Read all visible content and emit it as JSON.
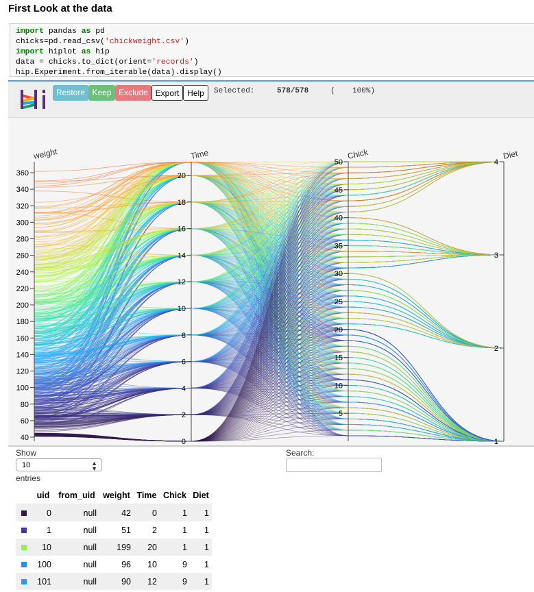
{
  "page": {
    "heading": "First Look at the data"
  },
  "code": {
    "lines": [
      [
        {
          "t": "import",
          "c": "kw"
        },
        {
          "t": " pandas "
        },
        {
          "t": "as",
          "c": "kw"
        },
        {
          "t": " pd"
        }
      ],
      [
        {
          "t": "chicks=pd.read_csv("
        },
        {
          "t": "'chickweight.csv'",
          "c": "str"
        },
        {
          "t": ")"
        }
      ],
      [
        {
          "t": "import",
          "c": "kw"
        },
        {
          "t": " hiplot "
        },
        {
          "t": "as",
          "c": "kw"
        },
        {
          "t": " hip"
        }
      ],
      [
        {
          "t": "data = chicks.to_dict(orient="
        },
        {
          "t": "'records'",
          "c": "str"
        },
        {
          "t": ")"
        }
      ],
      [
        {
          "t": "hip.Experiment.from_iterable(data).display()"
        }
      ]
    ]
  },
  "toolbar": {
    "restore_label": "Restore",
    "keep_label": "Keep",
    "exclude_label": "Exclude",
    "export_label": "Export",
    "help_label": "Help",
    "selected_label": "Selected:",
    "selected_count": "578/578",
    "selected_pct_open": "(",
    "selected_pct": "100%)",
    "colors": {
      "restore": "#6fbfd0",
      "keep": "#6cc07b",
      "exclude": "#e57a7f"
    }
  },
  "chart_data": {
    "type": "parallel_coordinates",
    "axes": [
      {
        "name": "weight",
        "ticks": [
          "40",
          "60",
          "80",
          "100",
          "120",
          "140",
          "160",
          "180",
          "200",
          "220",
          "240",
          "260",
          "280",
          "300",
          "320",
          "340",
          "360"
        ],
        "range": [
          35,
          373
        ]
      },
      {
        "name": "Time",
        "ticks": [
          "0",
          "2",
          "4",
          "6",
          "8",
          "10",
          "12",
          "14",
          "16",
          "18",
          "20"
        ],
        "range": [
          0,
          21
        ]
      },
      {
        "name": "Chick",
        "ticks": [
          "5",
          "10",
          "15",
          "20",
          "25",
          "30",
          "35",
          "40",
          "45",
          "50"
        ],
        "range": [
          1,
          50
        ]
      },
      {
        "name": "Diet",
        "ticks": [
          "1",
          "2",
          "3",
          "4"
        ],
        "range": [
          1,
          4
        ]
      }
    ],
    "time_points": [
      0,
      2,
      4,
      6,
      8,
      10,
      12,
      14,
      16,
      18,
      20,
      21
    ],
    "chick_diet_groups": [
      {
        "diet": 1,
        "chicks": [
          1,
          20
        ]
      },
      {
        "diet": 2,
        "chicks": [
          21,
          30
        ]
      },
      {
        "diet": 3,
        "chicks": [
          31,
          40
        ]
      },
      {
        "diet": 4,
        "chicks": [
          41,
          50
        ]
      }
    ],
    "colorscale": [
      "#30123b",
      "#4145ab",
      "#2ea6ff",
      "#2ee5ae",
      "#a4fc3c",
      "#f8ba38",
      "#fb7e21",
      "#ea4d1b"
    ]
  },
  "table": {
    "show_label": "Show",
    "length_value": "10",
    "entries_label": "entries",
    "search_label": "Search:",
    "columns": [
      "",
      "uid",
      "from_uid",
      "weight",
      "Time",
      "Chick",
      "Diet"
    ],
    "rows": [
      {
        "color": "#30193f",
        "cells": [
          "0",
          "null",
          "42",
          "0",
          "1",
          "1"
        ]
      },
      {
        "color": "#3e3b9c",
        "cells": [
          "1",
          "null",
          "51",
          "2",
          "1",
          "1"
        ]
      },
      {
        "color": "#8ef253",
        "cells": [
          "10",
          "null",
          "199",
          "20",
          "1",
          "1"
        ]
      },
      {
        "color": "#2c8cf5",
        "cells": [
          "100",
          "null",
          "96",
          "10",
          "9",
          "1"
        ]
      },
      {
        "color": "#2c99f5",
        "cells": [
          "101",
          "null",
          "90",
          "12",
          "9",
          "1"
        ]
      }
    ]
  }
}
